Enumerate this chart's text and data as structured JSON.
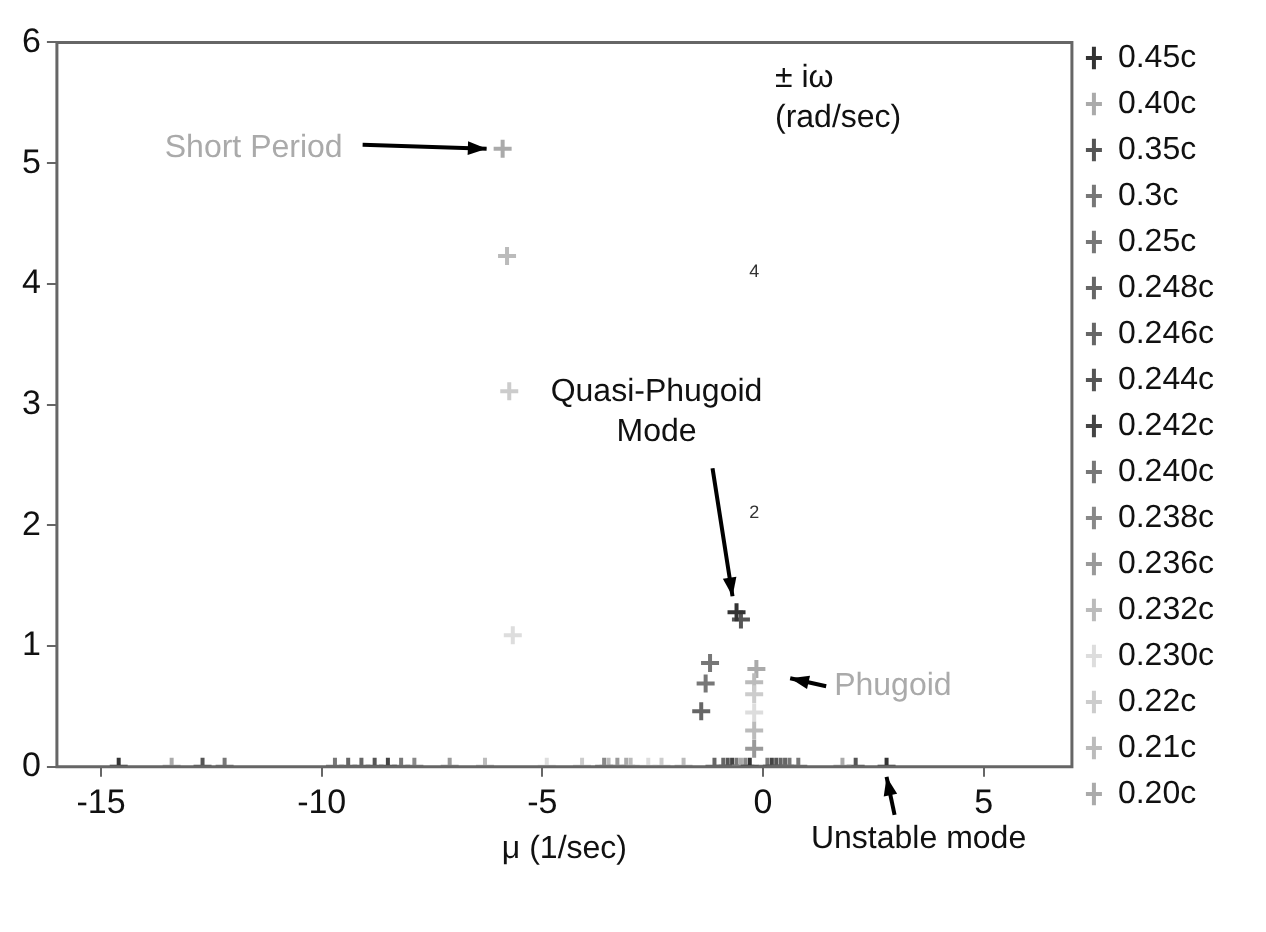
{
  "chart_data": {
    "type": "scatter",
    "xlabel": "μ (1/sec)",
    "ylabel": "± iω (rad/sec)",
    "xlim": [
      -16,
      7
    ],
    "xticks": [
      -15,
      -10,
      -5,
      0,
      5
    ],
    "ylim": [
      0,
      6
    ],
    "yticks": [
      0,
      1,
      2,
      3,
      4,
      5,
      6
    ],
    "marker": "cross",
    "legend": "right",
    "series": [
      {
        "name": "0.45c",
        "color": "#333333",
        "x": [
          -14.6,
          -0.6,
          2.8,
          -0.3
        ],
        "values": [
          0,
          1.28,
          0,
          0
        ]
      },
      {
        "name": "0.40c",
        "color": "#aaaaaa",
        "x": [
          -13.4,
          -0.6,
          1.8,
          -0.5
        ],
        "values": [
          0,
          null,
          0,
          0
        ]
      },
      {
        "name": "0.35c",
        "color": "#555555",
        "x": [
          -12.7,
          -0.5,
          2.1
        ],
        "values": [
          0,
          1.22,
          0
        ]
      },
      {
        "name": "0.3c",
        "color": "#777777",
        "x": [
          -12.2,
          -1.2,
          0.8
        ],
        "values": [
          0,
          0.86,
          0
        ]
      },
      {
        "name": "0.25c",
        "color": "#777777",
        "x": [
          -9.7,
          -1.3,
          0.6
        ],
        "values": [
          0,
          0.69,
          0
        ]
      },
      {
        "name": "0.248c",
        "color": "#666666",
        "x": [
          -9.4,
          -1.4,
          0.5
        ],
        "values": [
          0,
          0.46,
          0
        ]
      },
      {
        "name": "0.246c",
        "color": "#666666",
        "x": [
          -9.1,
          -1.1,
          0.4,
          -0.9
        ],
        "values": [
          0,
          0,
          0,
          0
        ]
      },
      {
        "name": "0.244c",
        "color": "#555555",
        "x": [
          -8.8,
          -0.8,
          0.3
        ],
        "values": [
          0,
          0,
          0
        ]
      },
      {
        "name": "0.242c",
        "color": "#444444",
        "x": [
          -8.5,
          -0.7,
          0.2
        ],
        "values": [
          0,
          0,
          0
        ]
      },
      {
        "name": "0.240c",
        "color": "#777777",
        "x": [
          -8.2,
          -0.6,
          0.1
        ],
        "values": [
          0,
          0,
          0
        ]
      },
      {
        "name": "0.238c",
        "color": "#888888",
        "x": [
          -7.9,
          -3.6,
          -0.4
        ],
        "values": [
          0,
          0,
          0
        ]
      },
      {
        "name": "0.236c",
        "color": "#999999",
        "x": [
          -7.1,
          -3.3,
          -0.2
        ],
        "values": [
          0,
          0,
          0.15
        ]
      },
      {
        "name": "0.232c",
        "color": "#bbbbbb",
        "x": [
          -6.3,
          -3.0,
          -0.2
        ],
        "values": [
          0,
          0,
          0.3
        ]
      },
      {
        "name": "0.230c",
        "color": "#dddddd",
        "x": [
          -5.67,
          -4.9,
          -2.6,
          -0.2
        ],
        "values": [
          1.09,
          0,
          0,
          0.45
        ]
      },
      {
        "name": "0.22c",
        "color": "#cccccc",
        "x": [
          -5.75,
          -4.1,
          -2.3,
          -0.2
        ],
        "values": [
          3.11,
          0,
          0,
          0.6
        ]
      },
      {
        "name": "0.21c",
        "color": "#bbbbbb",
        "x": [
          -5.8,
          -3.5,
          -1.8,
          -0.2
        ],
        "values": [
          4.23,
          0,
          0,
          0.7
        ]
      },
      {
        "name": "0.20c",
        "color": "#aaaaaa",
        "x": [
          -5.9,
          -3.1,
          -0.15
        ],
        "values": [
          5.12,
          0,
          0.81
        ]
      }
    ],
    "annotations": [
      {
        "text": "Short Period",
        "x": -5.9,
        "y": 5.12
      },
      {
        "text": "Quasi-Phugoid Mode",
        "x": -0.6,
        "y": 1.28
      },
      {
        "text": "Phugoid",
        "x": -0.2,
        "y": 0.7
      },
      {
        "text": "Unstable mode",
        "x": 2.8,
        "y": 0
      },
      "4",
      "2"
    ]
  }
}
